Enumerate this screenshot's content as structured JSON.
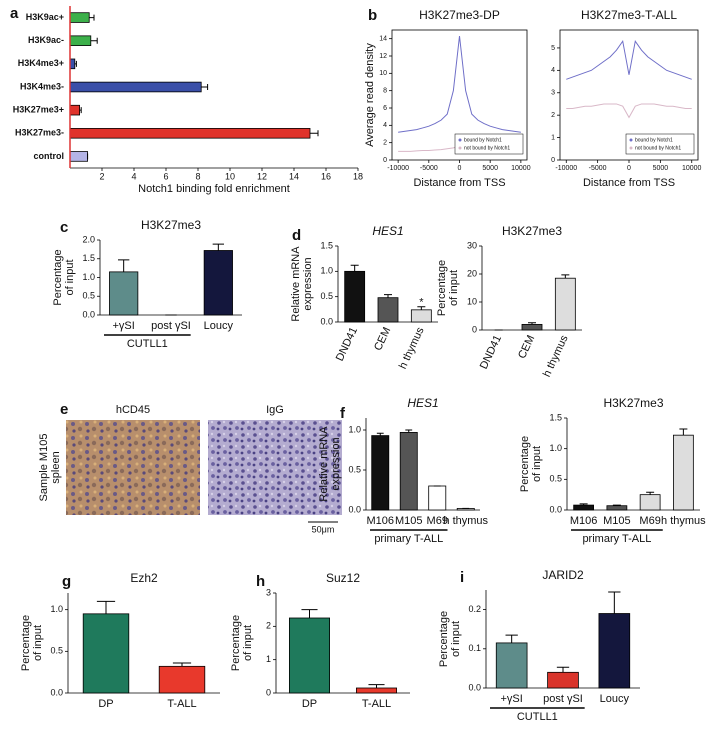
{
  "chart_data": [
    {
      "panel": "a",
      "type": "bar",
      "orientation": "horizontal",
      "categories": [
        "H3K9ac+",
        "H3K9ac-",
        "H3K4me3+",
        "H3K4me3-",
        "H3K27me3+",
        "H3K27me3-",
        "control"
      ],
      "values": [
        1.2,
        1.3,
        0.3,
        8.2,
        0.6,
        15.0,
        1.1
      ],
      "errors": [
        0.3,
        0.4,
        0.1,
        0.4,
        0.1,
        0.5,
        0
      ],
      "colors": [
        "#3cb04a",
        "#3cb04a",
        "#3a4fa8",
        "#3a4fa8",
        "#e0332b",
        "#e0332b",
        "#b4b4e6"
      ],
      "xlabel": "Notch1 binding fold enrichment",
      "xlim": [
        0,
        18
      ],
      "xticks": [
        2,
        4,
        6,
        8,
        10,
        12,
        14,
        16,
        18
      ]
    },
    {
      "panel": "b",
      "type": "line",
      "title": "H3K27me3-DP",
      "ylabel": [
        "Average read density"
      ],
      "xlabel": "Distance from TSS",
      "x": [
        -10000,
        -9000,
        -8000,
        -7000,
        -6000,
        -5000,
        -4000,
        -3000,
        -2000,
        -1000,
        0,
        1000,
        2000,
        3000,
        4000,
        5000,
        6000,
        7000,
        8000,
        9000,
        10000
      ],
      "xlim": [
        -11000,
        11000
      ],
      "xticks": [
        -10000,
        -5000,
        0,
        5000,
        10000
      ],
      "ylim": [
        0,
        15
      ],
      "yticks": [
        0,
        2,
        4,
        6,
        8,
        10,
        12,
        14
      ],
      "legend": "lower right",
      "series": [
        {
          "name": "bound by Notch1",
          "color": "#6f6fc8",
          "values": [
            3.2,
            3.3,
            3.4,
            3.5,
            3.7,
            3.9,
            4.2,
            4.6,
            5.3,
            8.0,
            14.3,
            8.0,
            5.3,
            4.6,
            4.2,
            3.9,
            3.7,
            3.5,
            3.4,
            3.3,
            3.2
          ]
        },
        {
          "name": "not bound by Notch1",
          "color": "#d9b8c8",
          "values": [
            1.0,
            1.0,
            1.0,
            1.05,
            1.1,
            1.1,
            1.15,
            1.2,
            1.3,
            1.4,
            1.6,
            1.4,
            1.3,
            1.2,
            1.15,
            1.1,
            1.1,
            1.05,
            1.0,
            1.0,
            1.0
          ]
        }
      ]
    },
    {
      "type": "line",
      "title": "H3K27me3-T-ALL",
      "xlabel": "Distance from TSS",
      "x": [
        -10000,
        -9000,
        -8000,
        -7000,
        -6000,
        -5000,
        -4000,
        -3000,
        -2000,
        -1000,
        0,
        1000,
        2000,
        3000,
        4000,
        5000,
        6000,
        7000,
        8000,
        9000,
        10000
      ],
      "xlim": [
        -11000,
        11000
      ],
      "xticks": [
        -10000,
        -5000,
        0,
        5000,
        10000
      ],
      "ylim": [
        0,
        5.8
      ],
      "yticks": [
        0,
        1,
        2,
        3,
        4,
        5
      ],
      "legend": "lower right",
      "series": [
        {
          "name": "bound by Notch1",
          "color": "#6f6fc8",
          "values": [
            3.6,
            3.7,
            3.8,
            3.9,
            4.0,
            4.2,
            4.4,
            4.6,
            4.9,
            5.3,
            3.8,
            5.3,
            4.9,
            4.6,
            4.4,
            4.2,
            4.0,
            3.9,
            3.8,
            3.7,
            3.6
          ]
        },
        {
          "name": "not bound by Notch1",
          "color": "#d9b8c8",
          "values": [
            2.3,
            2.3,
            2.35,
            2.4,
            2.4,
            2.45,
            2.5,
            2.5,
            2.5,
            2.4,
            1.9,
            2.4,
            2.5,
            2.5,
            2.5,
            2.45,
            2.4,
            2.4,
            2.35,
            2.3,
            2.3
          ]
        }
      ]
    },
    {
      "panel": "c",
      "type": "bar",
      "title": "H3K27me3",
      "ylabel": [
        "Percentage",
        "of input"
      ],
      "categories": [
        "+γSI",
        "post γSI",
        "Loucy"
      ],
      "category_groups": [
        "CUTLL1",
        "CUTLL1",
        null
      ],
      "values": [
        1.15,
        0,
        1.72
      ],
      "errors": [
        0.32,
        0,
        0.17
      ],
      "colors": [
        "#5e8c8a",
        "#5e8c8a",
        "#14173d"
      ],
      "ylim": [
        0,
        2.0
      ],
      "yticks": [
        {
          "value": 0,
          "label": "0.0"
        },
        0.5,
        {
          "value": 1,
          "label": "1.0"
        },
        1.5,
        {
          "value": 2,
          "label": "2.0"
        }
      ]
    },
    {
      "panel": "d",
      "type": "bar",
      "title": "HES1",
      "title_italic": true,
      "ylabel": [
        "Relative mRNA",
        "expression"
      ],
      "rotated_labels": true,
      "categories": [
        "DND41",
        "CEM",
        "h thymus"
      ],
      "values": [
        1.0,
        0.48,
        0.24
      ],
      "errors": [
        0.12,
        0.06,
        0.06
      ],
      "annotations": [
        null,
        null,
        "*"
      ],
      "colors": [
        "#111111",
        "#555555",
        "#dddddd"
      ],
      "ylim": [
        0,
        1.5
      ],
      "yticks": [
        {
          "value": 0,
          "label": "0.0"
        },
        0.5,
        {
          "value": 1,
          "label": "1.0"
        },
        1.5
      ]
    },
    {
      "type": "bar",
      "title": "H3K27me3",
      "ylabel": [
        "Percentage",
        "of input"
      ],
      "rotated_labels": true,
      "categories": [
        "DND41",
        "CEM",
        "h thymus"
      ],
      "values": [
        0,
        2,
        18.5
      ],
      "errors": [
        0,
        0.6,
        1.2
      ],
      "colors": [
        "#111111",
        "#555555",
        "#dddddd"
      ],
      "ylim": [
        0,
        30
      ],
      "yticks": [
        0,
        10,
        20,
        30
      ]
    },
    {
      "panel": "e",
      "type": "image",
      "titles": [
        "hCD45",
        "IgG"
      ],
      "ylabel": [
        "Sample M105",
        "spleen"
      ],
      "scale_bar": "50μm"
    },
    {
      "panel": "f",
      "type": "bar",
      "title": "HES1",
      "title_italic": true,
      "ylabel": [
        "Relative mRNA",
        "expression"
      ],
      "categories": [
        "M106",
        "M105",
        "M69",
        "h thymus"
      ],
      "category_groups": [
        "primary T-ALL",
        "primary T-ALL",
        "primary T-ALL",
        null
      ],
      "values": [
        0.93,
        0.97,
        0.3,
        0.02
      ],
      "errors": [
        0.03,
        0.03,
        0,
        0
      ],
      "colors": [
        "#111111",
        "#555555",
        "#ffffff",
        "#dddddd"
      ],
      "ylim": [
        0,
        1.15
      ],
      "yticks": [
        {
          "value": 0,
          "label": "0.0"
        },
        0.5,
        {
          "value": 1,
          "label": "1.0"
        }
      ]
    },
    {
      "type": "bar",
      "title": "H3K27me3",
      "ylabel": [
        "Percentage",
        "of input"
      ],
      "categories": [
        "M106",
        "M105",
        "M69",
        "h thymus"
      ],
      "category_groups": [
        "primary T-ALL",
        "primary T-ALL",
        "primary T-ALL",
        null
      ],
      "values": [
        0.08,
        0.07,
        0.25,
        1.22
      ],
      "errors": [
        0.02,
        0.01,
        0.04,
        0.1
      ],
      "colors": [
        "#111111",
        "#555555",
        "#dddddd",
        "#dddddd"
      ],
      "ylim": [
        0,
        1.5
      ],
      "yticks": [
        {
          "value": 0,
          "label": "0.0"
        },
        0.5,
        {
          "value": 1,
          "label": "1.0"
        },
        1.5
      ]
    },
    {
      "panel": "g",
      "type": "bar",
      "title": "Ezh2",
      "ylabel": [
        "Percentage",
        "of input"
      ],
      "categories": [
        "DP",
        "T-ALL"
      ],
      "values": [
        0.95,
        0.32
      ],
      "errors": [
        0.15,
        0.04
      ],
      "colors": [
        "#1f7a5c",
        "#e8392c"
      ],
      "ylim": [
        0,
        1.2
      ],
      "yticks": [
        {
          "value": 0,
          "label": "0.0"
        },
        0.5,
        {
          "value": 1,
          "label": "1.0"
        }
      ]
    },
    {
      "panel": "h",
      "type": "bar",
      "title": "Suz12",
      "ylabel": [
        "Percentage",
        "of input"
      ],
      "categories": [
        "DP",
        "T-ALL"
      ],
      "values": [
        2.25,
        0.15
      ],
      "errors": [
        0.25,
        0.1
      ],
      "colors": [
        "#1f7a5c",
        "#e8392c"
      ],
      "ylim": [
        0,
        3
      ],
      "yticks": [
        0,
        1,
        2,
        3
      ]
    },
    {
      "panel": "i",
      "type": "bar",
      "title": "JARID2",
      "ylabel": [
        "Percentage",
        "of input"
      ],
      "categories": [
        "+γSI",
        "post γSI",
        "Loucy"
      ],
      "category_groups": [
        "CUTLL1",
        "CUTLL1",
        null
      ],
      "values": [
        0.115,
        0.04,
        0.19
      ],
      "errors": [
        0.02,
        0.013,
        0.055
      ],
      "colors": [
        "#5e8c8a",
        "#d9342b",
        "#14173d"
      ],
      "ylim": [
        0,
        0.25
      ],
      "yticks": [
        {
          "value": 0,
          "label": "0.0"
        },
        0.1,
        0.2
      ]
    }
  ]
}
